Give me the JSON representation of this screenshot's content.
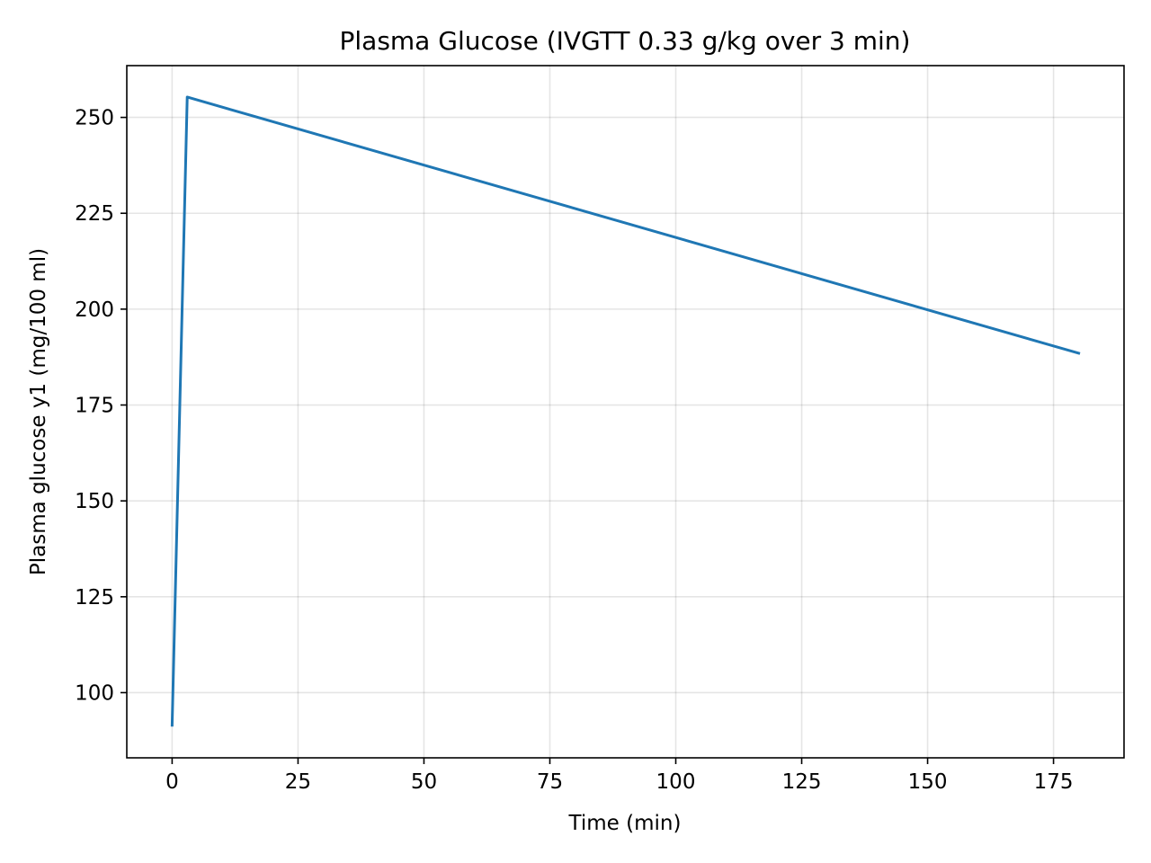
{
  "chart_data": {
    "type": "line",
    "title": "Plasma Glucose (IVGTT 0.33 g/kg over 3 min)",
    "xlabel": "Time (min)",
    "ylabel": "Plasma glucose y1 (mg/100 ml)",
    "xlim": [
      -9,
      189
    ],
    "ylim": [
      83,
      263.5
    ],
    "xticks": [
      0,
      25,
      50,
      75,
      100,
      125,
      150,
      175
    ],
    "yticks": [
      100,
      125,
      150,
      175,
      200,
      225,
      250
    ],
    "grid": true,
    "series": [
      {
        "color": "#1f77b4",
        "x": [
          0,
          3,
          180
        ],
        "y": [
          91.5,
          255.3,
          188.5
        ]
      }
    ]
  }
}
